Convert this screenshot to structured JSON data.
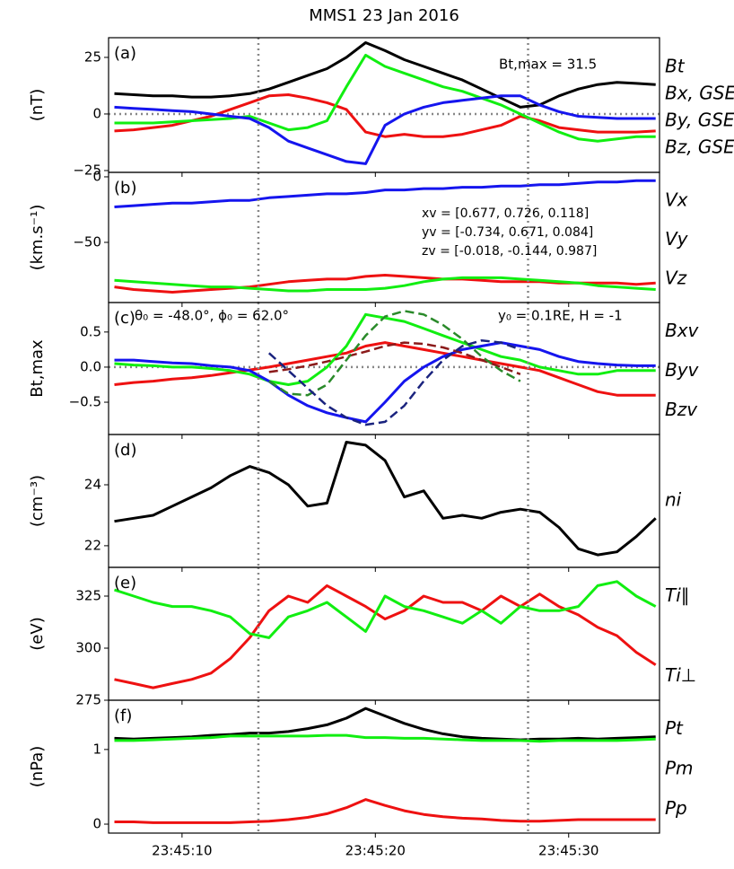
{
  "chart_data": [
    {
      "type": "line",
      "title": "MMS1 23 Jan 2016",
      "label": "(a)",
      "ylabel": "(nT)",
      "x": [
        6.5,
        7.5,
        8.5,
        9.5,
        10.5,
        11.5,
        12.5,
        13.5,
        14.5,
        15.5,
        16.5,
        17.5,
        18.5,
        19.5,
        20.5,
        21.5,
        22.5,
        23.5,
        24.5,
        25.5,
        26.5,
        27.5,
        28.5,
        29.5,
        30.5,
        31.5,
        32.5,
        33.5,
        34.5
      ],
      "xlim": [
        6.2,
        34.7
      ],
      "ylim": [
        -25.8,
        33.7
      ],
      "yticks": [
        {
          "value": -25,
          "label": "−25"
        },
        0,
        25
      ],
      "hline": 0,
      "vlines": [
        13.95,
        27.9
      ],
      "annotations": [
        "Bt,max = 31.5"
      ],
      "series": [
        {
          "name": "Bt",
          "color": "#000000",
          "values": [
            9,
            8.5,
            8,
            8,
            7.5,
            7.5,
            8,
            9,
            11,
            14,
            17,
            20,
            25,
            31.5,
            28,
            24,
            21,
            18,
            15,
            11,
            7,
            3,
            4,
            8,
            11,
            13,
            14,
            13.5,
            13
          ]
        },
        {
          "name": "Bx, GSE",
          "color": "#ee1111",
          "values": [
            -7.5,
            -7,
            -6,
            -5,
            -3,
            -1,
            2,
            5,
            8,
            8.5,
            7,
            5,
            2,
            -8,
            -10,
            -9,
            -10,
            -10,
            -9,
            -7,
            -5,
            -1,
            -3,
            -6,
            -7,
            -8,
            -8,
            -8,
            -7.5
          ]
        },
        {
          "name": "By, GSE",
          "color": "#11ee11",
          "values": [
            -4,
            -4,
            -4,
            -3.5,
            -3,
            -2.5,
            -2,
            -1,
            -4,
            -7,
            -6,
            -3,
            12,
            26,
            21,
            18,
            15,
            12,
            10,
            7,
            4,
            0,
            -4,
            -8,
            -11,
            -12,
            -11,
            -10,
            -10
          ]
        },
        {
          "name": "Bz, GSE",
          "color": "#1515ee",
          "values": [
            3,
            2.5,
            2,
            1.5,
            1,
            0,
            -1,
            -2,
            -6,
            -12,
            -15,
            -18,
            -21,
            -22,
            -5,
            0,
            3,
            5,
            6,
            7,
            8,
            8,
            4,
            1,
            -1,
            -1.5,
            -2,
            -2,
            -2
          ]
        }
      ]
    },
    {
      "type": "line",
      "label": "(b)",
      "ylabel": "(km.s⁻¹)",
      "x": [
        6.5,
        7.5,
        8.5,
        9.5,
        10.5,
        11.5,
        12.5,
        13.5,
        14.5,
        15.5,
        16.5,
        17.5,
        18.5,
        19.5,
        20.5,
        21.5,
        22.5,
        23.5,
        24.5,
        25.5,
        26.5,
        27.5,
        28.5,
        29.5,
        30.5,
        31.5,
        32.5,
        33.5,
        34.5
      ],
      "xlim": [
        6.2,
        34.7
      ],
      "ylim": [
        -95.9,
        3.4
      ],
      "yticks": [
        {
          "value": -50,
          "label": "−50"
        },
        0
      ],
      "vlines": [
        13.95,
        27.9
      ],
      "annotations": [
        "xv = [0.677, 0.726, 0.118]",
        "yv = [-0.734, 0.671, 0.084]",
        "zv = [-0.018, -0.144, 0.987]"
      ],
      "series": [
        {
          "name": "Vx",
          "color": "#ee1111",
          "values": [
            -84,
            -86,
            -87,
            -88,
            -87,
            -86,
            -85,
            -84,
            -82,
            -80,
            -79,
            -78,
            -78,
            -76,
            -75,
            -76,
            -77,
            -78,
            -78,
            -79,
            -80,
            -80,
            -80,
            -81,
            -81,
            -81,
            -81,
            -82,
            -81
          ]
        },
        {
          "name": "Vy",
          "color": "#11ee11",
          "values": [
            -79,
            -80,
            -81,
            -82,
            -83,
            -84,
            -84,
            -85,
            -86,
            -87,
            -87,
            -86,
            -86,
            -86,
            -85,
            -83,
            -80,
            -78,
            -77,
            -77,
            -77,
            -78,
            -79,
            -80,
            -81,
            -83,
            -84,
            -85,
            -86
          ]
        },
        {
          "name": "Vz",
          "color": "#1515ee",
          "values": [
            -23,
            -22,
            -21,
            -20,
            -20,
            -19,
            -18,
            -18,
            -16,
            -15,
            -14,
            -13,
            -13,
            -12,
            -10,
            -10,
            -9,
            -9,
            -8,
            -8,
            -7,
            -7,
            -6,
            -6,
            -5,
            -4,
            -4,
            -3,
            -3
          ]
        }
      ]
    },
    {
      "type": "line",
      "label": "(c)",
      "ylabel": "Bt,max",
      "x": [
        6.5,
        7.5,
        8.5,
        9.5,
        10.5,
        11.5,
        12.5,
        13.5,
        14.5,
        15.5,
        16.5,
        17.5,
        18.5,
        19.5,
        20.5,
        21.5,
        22.5,
        23.5,
        24.5,
        25.5,
        26.5,
        27.5,
        28.5,
        29.5,
        30.5,
        31.5,
        32.5,
        33.5,
        34.5
      ],
      "xlim": [
        6.2,
        34.7
      ],
      "ylim": [
        -0.96,
        0.92
      ],
      "yticks": [
        {
          "value": -0.5,
          "label": "−0.5"
        },
        {
          "value": 0,
          "label": "0.0"
        },
        0.5
      ],
      "hline": 0,
      "vlines": [
        13.95,
        27.9
      ],
      "annotations": [
        "θ₀ = -48.0°, ϕ₀ = 62.0°",
        "y₀ = 0.1RE, H = -1"
      ],
      "series": [
        {
          "name": "Bxv",
          "color": "#ee1111",
          "values": [
            -0.25,
            -0.22,
            -0.2,
            -0.17,
            -0.15,
            -0.12,
            -0.08,
            -0.04,
            0.0,
            0.05,
            0.1,
            0.15,
            0.2,
            0.3,
            0.35,
            0.3,
            0.25,
            0.2,
            0.15,
            0.1,
            0.05,
            0,
            -0.05,
            -0.15,
            -0.25,
            -0.35,
            -0.4,
            -0.4,
            -0.4
          ]
        },
        {
          "name": "Byv",
          "color": "#11ee11",
          "values": [
            0.05,
            0.03,
            0.02,
            0.0,
            0.0,
            -0.02,
            -0.05,
            -0.1,
            -0.2,
            -0.25,
            -0.2,
            0.0,
            0.3,
            0.75,
            0.7,
            0.65,
            0.55,
            0.45,
            0.35,
            0.25,
            0.15,
            0.1,
            0.0,
            -0.05,
            -0.1,
            -0.1,
            -0.05,
            -0.05,
            -0.05
          ]
        },
        {
          "name": "Bzv",
          "color": "#1515ee",
          "values": [
            0.1,
            0.1,
            0.08,
            0.06,
            0.05,
            0.02,
            0.0,
            -0.05,
            -0.2,
            -0.4,
            -0.55,
            -0.65,
            -0.72,
            -0.78,
            -0.5,
            -0.2,
            0.0,
            0.15,
            0.25,
            0.3,
            0.35,
            0.3,
            0.25,
            0.15,
            0.08,
            0.05,
            0.03,
            0.02,
            0.02
          ]
        },
        {
          "color": "#8b1a1a",
          "dash": true,
          "values": [
            null,
            null,
            null,
            null,
            null,
            null,
            null,
            null,
            -0.07,
            -0.03,
            0.02,
            0.08,
            0.15,
            0.22,
            0.3,
            0.35,
            0.33,
            0.28,
            0.2,
            0.1,
            0.0,
            -0.1,
            null,
            null,
            null,
            null,
            null,
            null,
            null
          ]
        },
        {
          "color": "#2a8a2a",
          "dash": true,
          "values": [
            null,
            null,
            null,
            null,
            null,
            null,
            null,
            null,
            -0.2,
            -0.38,
            -0.4,
            -0.25,
            0.1,
            0.45,
            0.72,
            0.8,
            0.75,
            0.6,
            0.4,
            0.15,
            -0.05,
            -0.2,
            null,
            null,
            null,
            null,
            null,
            null,
            null
          ]
        },
        {
          "color": "#1a237e",
          "dash": true,
          "values": [
            null,
            null,
            null,
            null,
            null,
            null,
            null,
            null,
            0.2,
            -0.05,
            -0.3,
            -0.55,
            -0.72,
            -0.82,
            -0.78,
            -0.55,
            -0.2,
            0.1,
            0.3,
            0.38,
            0.35,
            0.25,
            null,
            null,
            null,
            null,
            null,
            null,
            null
          ]
        }
      ]
    },
    {
      "type": "line",
      "label": "(d)",
      "ylabel": "(cm⁻³)",
      "x": [
        6.5,
        7.5,
        8.5,
        9.5,
        10.5,
        11.5,
        12.5,
        13.5,
        14.5,
        15.5,
        16.5,
        17.5,
        18.5,
        19.5,
        20.5,
        21.5,
        22.5,
        23.5,
        24.5,
        25.5,
        26.5,
        27.5,
        28.5,
        29.5,
        30.5,
        31.5,
        32.5,
        33.5,
        34.5
      ],
      "xlim": [
        6.2,
        34.7
      ],
      "ylim": [
        21.29,
        25.65
      ],
      "yticks": [
        22,
        24
      ],
      "vlines": [
        13.95,
        27.9
      ],
      "series": [
        {
          "name": "ni",
          "color": "#000000",
          "values": [
            22.8,
            22.9,
            23.0,
            23.3,
            23.6,
            23.9,
            24.3,
            24.6,
            24.4,
            24.0,
            23.3,
            23.4,
            25.4,
            25.3,
            24.8,
            23.6,
            23.8,
            22.9,
            23.0,
            22.9,
            23.1,
            23.2,
            23.1,
            22.6,
            21.9,
            21.7,
            21.8,
            22.3,
            22.9
          ]
        }
      ]
    },
    {
      "type": "line",
      "label": "(e)",
      "ylabel": "(eV)",
      "x": [
        6.5,
        7.5,
        8.5,
        9.5,
        10.5,
        11.5,
        12.5,
        13.5,
        14.5,
        15.5,
        16.5,
        17.5,
        18.5,
        19.5,
        20.5,
        21.5,
        22.5,
        23.5,
        24.5,
        25.5,
        26.5,
        27.5,
        28.5,
        29.5,
        30.5,
        31.5,
        32.5,
        33.5,
        34.5
      ],
      "xlim": [
        6.2,
        34.7
      ],
      "ylim": [
        275,
        338.8
      ],
      "yticks": [
        275,
        300,
        325
      ],
      "vlines": [
        13.95,
        27.9
      ],
      "series": [
        {
          "name": "Ti∥",
          "color": "#ee1111",
          "values": [
            285,
            283,
            281,
            283,
            285,
            288,
            295,
            305,
            318,
            325,
            322,
            330,
            325,
            320,
            314,
            318,
            325,
            322,
            322,
            318,
            325,
            320,
            326,
            320,
            316,
            310,
            306,
            298,
            292
          ]
        },
        {
          "name": "Ti⊥",
          "color": "#11ee11",
          "values": [
            328,
            325,
            322,
            320,
            320,
            318,
            315,
            307,
            305,
            315,
            318,
            322,
            315,
            308,
            325,
            320,
            318,
            315,
            312,
            318,
            312,
            320,
            318,
            318,
            320,
            330,
            332,
            325,
            320
          ]
        }
      ]
    },
    {
      "type": "line",
      "label": "(f)",
      "ylabel": "(nPa)",
      "x": [
        6.5,
        7.5,
        8.5,
        9.5,
        10.5,
        11.5,
        12.5,
        13.5,
        14.5,
        15.5,
        16.5,
        17.5,
        18.5,
        19.5,
        20.5,
        21.5,
        22.5,
        23.5,
        24.5,
        25.5,
        26.5,
        27.5,
        28.5,
        29.5,
        30.5,
        31.5,
        32.5,
        33.5,
        34.5
      ],
      "xlim": [
        6.2,
        34.7
      ],
      "ylim": [
        -0.12,
        1.66
      ],
      "xticks": [
        {
          "value": 10,
          "label": "23:45:10"
        },
        {
          "value": 20,
          "label": "23:45:20"
        },
        {
          "value": 30,
          "label": "23:45:30"
        }
      ],
      "yticks": [
        0,
        1
      ],
      "vlines": [
        13.95,
        27.9
      ],
      "series": [
        {
          "name": "Pt",
          "color": "#000000",
          "values": [
            1.15,
            1.14,
            1.15,
            1.16,
            1.17,
            1.19,
            1.2,
            1.22,
            1.22,
            1.24,
            1.28,
            1.33,
            1.42,
            1.55,
            1.45,
            1.35,
            1.27,
            1.21,
            1.17,
            1.15,
            1.14,
            1.13,
            1.14,
            1.14,
            1.15,
            1.14,
            1.15,
            1.16,
            1.17
          ]
        },
        {
          "name": "Pm",
          "color": "#ee1111",
          "values": [
            0.03,
            0.03,
            0.02,
            0.02,
            0.02,
            0.02,
            0.02,
            0.03,
            0.04,
            0.06,
            0.09,
            0.14,
            0.22,
            0.33,
            0.25,
            0.18,
            0.13,
            0.1,
            0.08,
            0.07,
            0.05,
            0.04,
            0.04,
            0.05,
            0.06,
            0.06,
            0.06,
            0.06,
            0.06
          ]
        },
        {
          "name": "Pp",
          "color": "#11ee11",
          "values": [
            1.12,
            1.12,
            1.13,
            1.14,
            1.15,
            1.16,
            1.18,
            1.18,
            1.18,
            1.18,
            1.18,
            1.19,
            1.19,
            1.16,
            1.16,
            1.15,
            1.15,
            1.14,
            1.13,
            1.12,
            1.12,
            1.12,
            1.11,
            1.12,
            1.12,
            1.12,
            1.12,
            1.13,
            1.14
          ]
        }
      ]
    }
  ]
}
